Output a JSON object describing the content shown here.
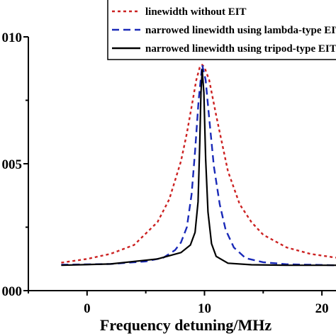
{
  "chart_data": {
    "type": "line",
    "xlabel": "Frequency detuning/MHz",
    "ylabel": "",
    "xlim": [
      -5.0,
      21.2
    ],
    "ylim": [
      0.0,
      0.01
    ],
    "x_ticks": [
      {
        "value": 0,
        "label": "0"
      },
      {
        "value": 10,
        "label": "10"
      },
      {
        "value": 20,
        "label": "20"
      }
    ],
    "y_ticks": [
      {
        "value": 0.0,
        "label": "000"
      },
      {
        "value": 0.005,
        "label": "005"
      },
      {
        "value": 0.01,
        "label": "010"
      }
    ],
    "legend_position": "top-right",
    "series": [
      {
        "name": "linewidth without EIT",
        "color": "#cc2222",
        "dash": "dotted",
        "x": [
          -2.2,
          0,
          2,
          4,
          6,
          7,
          8,
          8.5,
          9,
          9.3,
          9.6,
          9.8,
          10,
          10.4,
          11,
          11.5,
          12,
          13,
          14,
          15,
          17,
          19,
          21.2
        ],
        "y": [
          0.0011,
          0.00125,
          0.00145,
          0.0018,
          0.0027,
          0.0036,
          0.0051,
          0.0062,
          0.0075,
          0.0083,
          0.0088,
          0.0089,
          0.0088,
          0.0083,
          0.0069,
          0.0058,
          0.0047,
          0.0034,
          0.0027,
          0.0022,
          0.0017,
          0.00145,
          0.0013
        ]
      },
      {
        "name": "narrowed linewidth using lambda-type EIT",
        "color": "#1a2ab8",
        "dash": "dashed",
        "x": [
          -2.2,
          2,
          5,
          6.5,
          7.5,
          8,
          8.5,
          8.9,
          9.2,
          9.5,
          9.8,
          10.1,
          10.4,
          10.8,
          11.3,
          11.8,
          12.5,
          13.5,
          15,
          17,
          21.2
        ],
        "y": [
          0.00102,
          0.00105,
          0.00115,
          0.0013,
          0.0016,
          0.0019,
          0.0025,
          0.0038,
          0.0055,
          0.0075,
          0.0089,
          0.0083,
          0.0068,
          0.0049,
          0.0034,
          0.0024,
          0.0017,
          0.00128,
          0.00112,
          0.00104,
          0.001
        ]
      },
      {
        "name": "narrowed linewidth using tripod-type EIT",
        "color": "#000000",
        "dash": "solid",
        "x": [
          -2.2,
          2,
          6,
          8,
          8.8,
          9.2,
          9.45,
          9.6,
          9.7,
          9.8,
          9.95,
          10.1,
          10.3,
          10.6,
          11,
          12,
          14,
          17,
          21.2
        ],
        "y": [
          0.001,
          0.00105,
          0.00125,
          0.0015,
          0.0018,
          0.0023,
          0.0035,
          0.0058,
          0.0078,
          0.0087,
          0.0078,
          0.0052,
          0.0031,
          0.00185,
          0.00135,
          0.00108,
          0.00102,
          0.001,
          0.001
        ]
      }
    ]
  }
}
